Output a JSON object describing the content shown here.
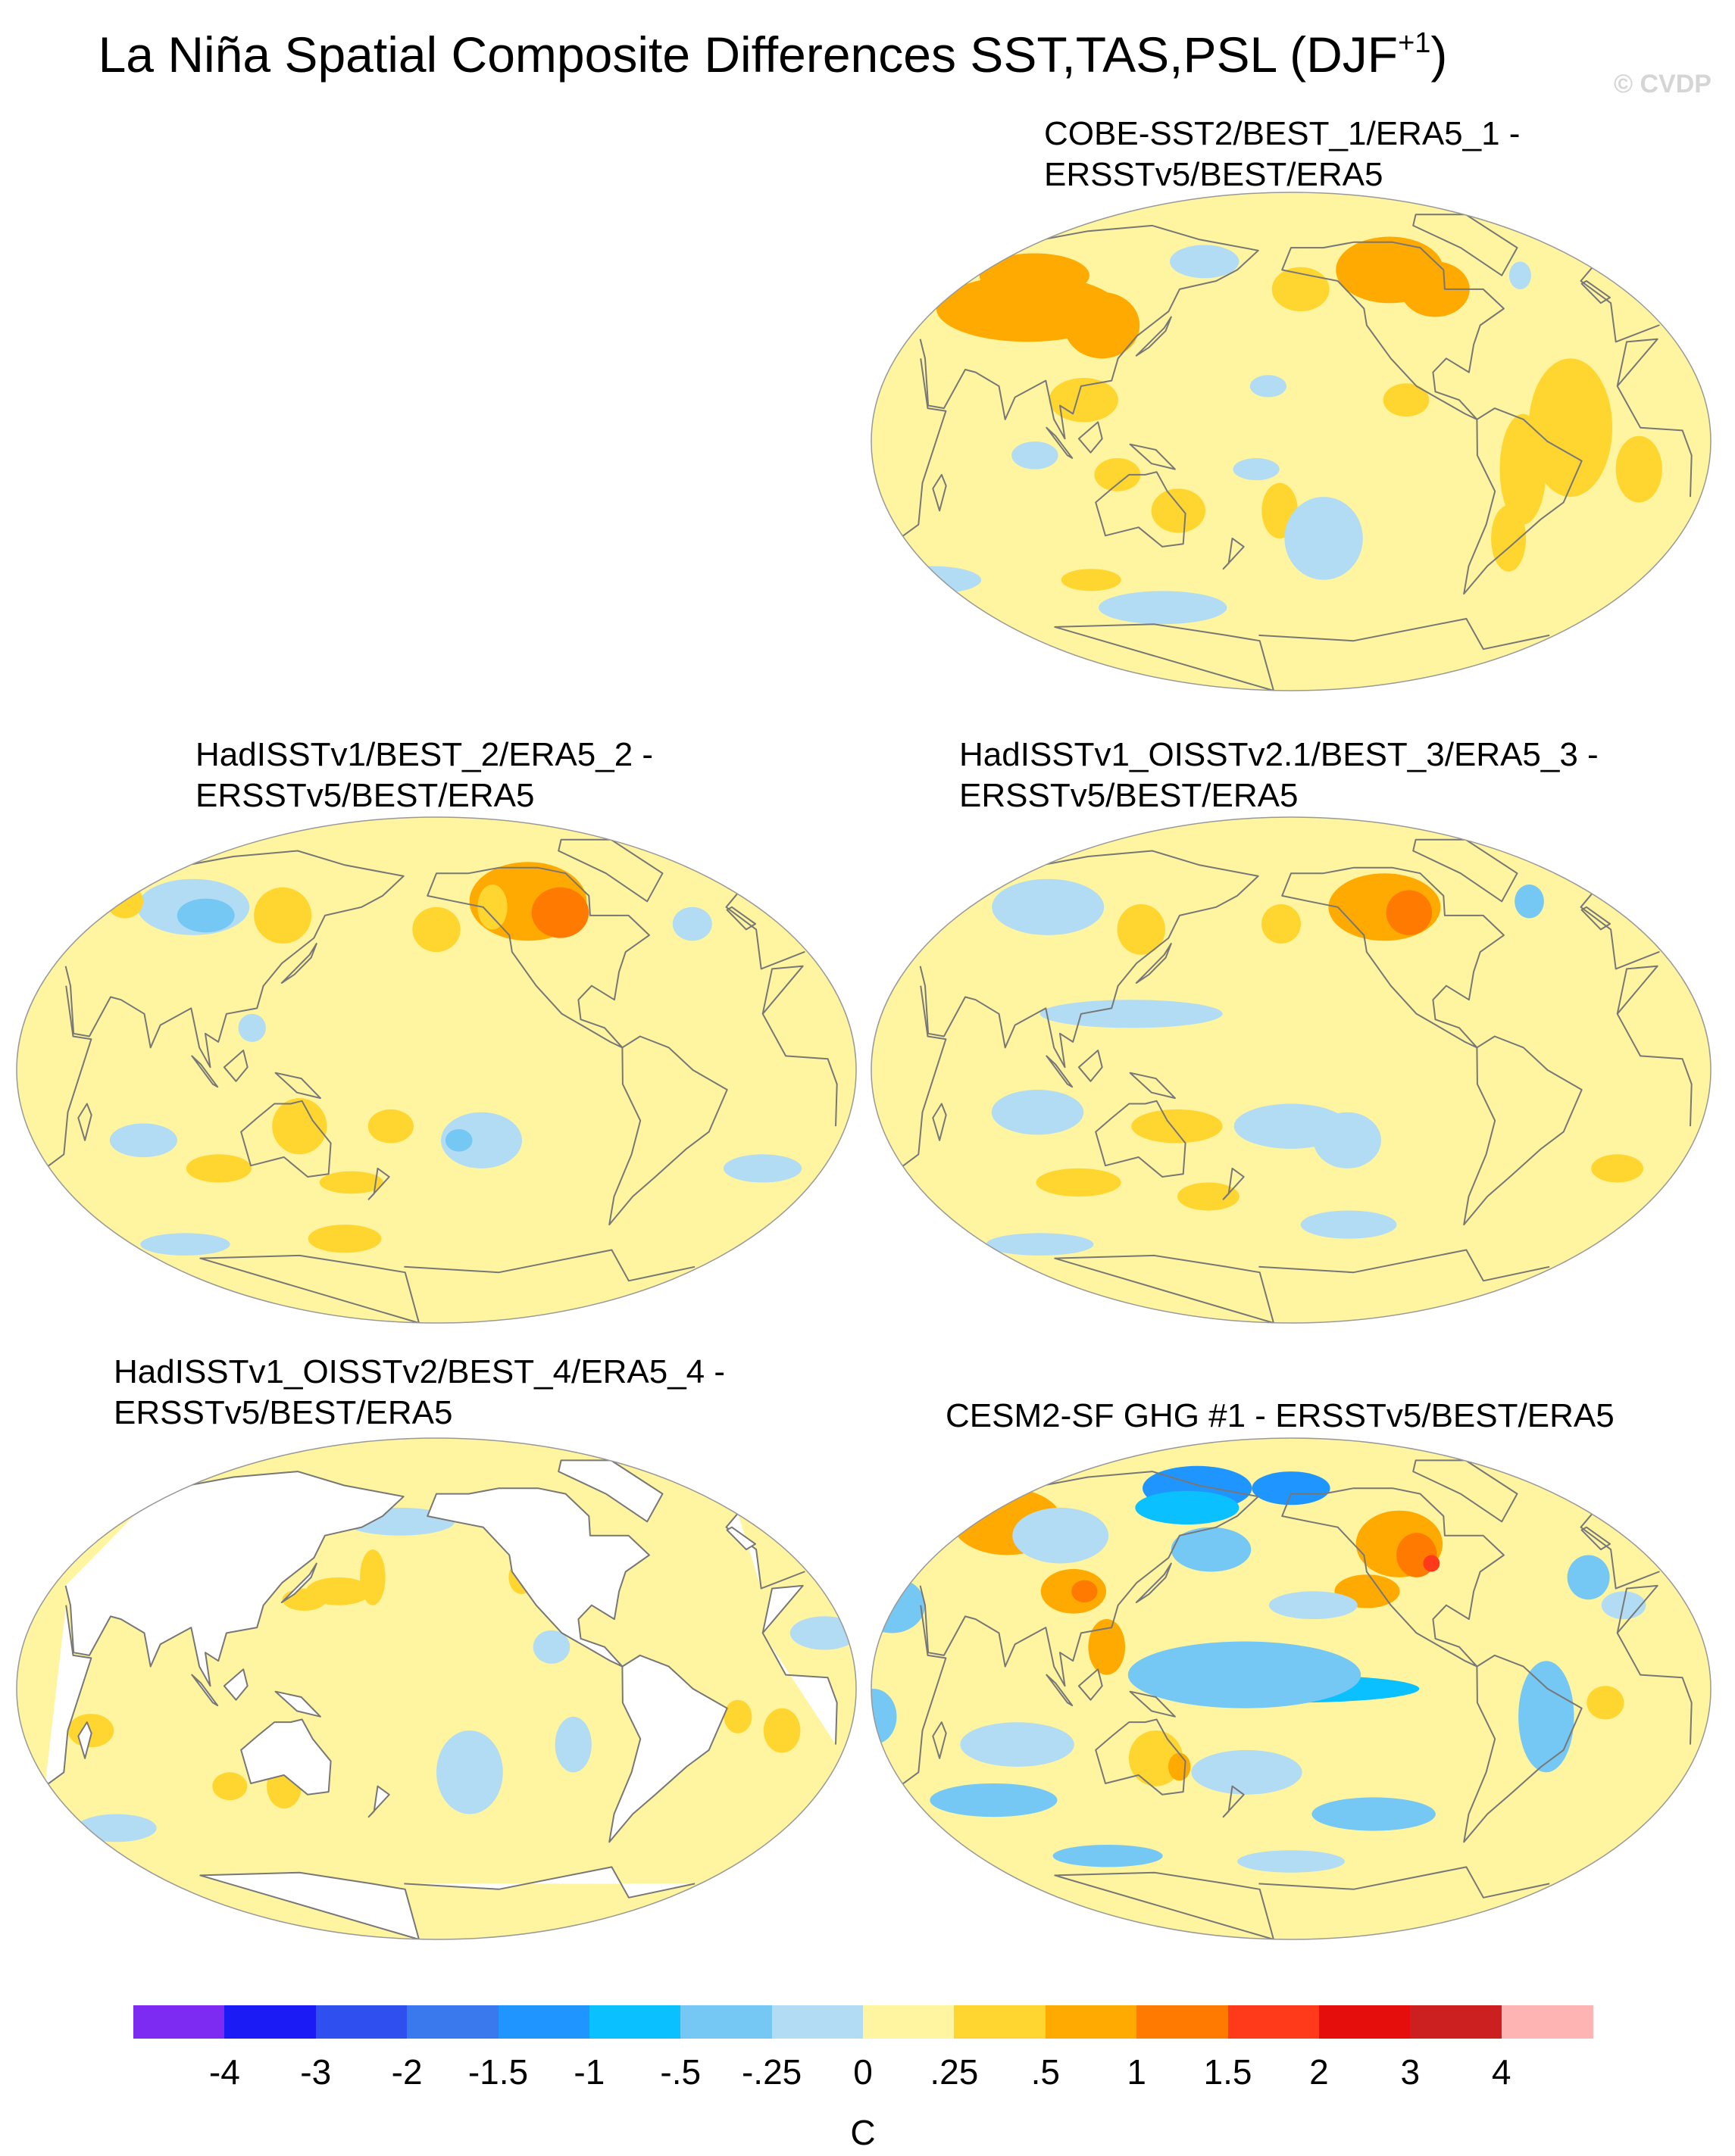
{
  "figure": {
    "title_main": "La Niña Spatial Composite Differences SST,TAS,PSL (DJF",
    "title_sup": "+1",
    "title_close": ")",
    "credit": "© CVDP"
  },
  "colors": {
    "ocean_default": "#fff5a0",
    "land_missing": "#ffffff",
    "coastline": "#777777",
    "map_border": "#999999"
  },
  "chart_data": {
    "type": "heatmap",
    "projection": "Robinson-like global maps, centered on the Pacific",
    "variable": "SST/TAS/PSL composite difference",
    "season": "DJF+1",
    "units": "C",
    "colorbar": {
      "levels": [
        "-4",
        "-3",
        "-2",
        "-1.5",
        "-1",
        "-.5",
        "-.25",
        "0",
        ".25",
        ".5",
        "1",
        "1.5",
        "2",
        "3",
        "4"
      ],
      "colors": [
        "#7d2bf2",
        "#1b1bf5",
        "#2f50ee",
        "#3a78ee",
        "#1f95ff",
        "#0ac0ff",
        "#76c8f4",
        "#b1dcf3",
        "#fff5a0",
        "#ffd530",
        "#ffaa00",
        "#ff7a00",
        "#ff3a1a",
        "#e60d0d",
        "#cc1f1f",
        "#ffb4b4"
      ],
      "unit_label": "C"
    },
    "panels": [
      {
        "id": "p1",
        "title_line1": "COBE-SST2/BEST_1/ERA5_1 -",
        "title_line2": "ERSSTv5/BEST/ERA5",
        "land_missing": false,
        "blobs": [
          {
            "lon": 70,
            "lat": 48,
            "rx": 45,
            "ry": 12,
            "level": 10
          },
          {
            "lon": 60,
            "lat": 60,
            "rx": 30,
            "ry": 8,
            "level": 10
          },
          {
            "lon": 110,
            "lat": 42,
            "rx": 18,
            "ry": 12,
            "level": 10
          },
          {
            "lon": 255,
            "lat": 62,
            "rx": 30,
            "ry": 12,
            "level": 10
          },
          {
            "lon": 275,
            "lat": 55,
            "rx": 18,
            "ry": 10,
            "level": 10
          },
          {
            "lon": 205,
            "lat": 55,
            "rx": 15,
            "ry": 8,
            "level": 9
          },
          {
            "lon": 320,
            "lat": 5,
            "rx": 18,
            "ry": 25,
            "level": 9
          },
          {
            "lon": 300,
            "lat": -10,
            "rx": 10,
            "ry": 20,
            "level": 9
          },
          {
            "lon": 350,
            "lat": -10,
            "rx": 10,
            "ry": 12,
            "level": 9
          },
          {
            "lon": 300,
            "lat": -35,
            "rx": 8,
            "ry": 12,
            "level": 9
          },
          {
            "lon": 110,
            "lat": 15,
            "rx": 15,
            "ry": 8,
            "level": 9
          },
          {
            "lon": 125,
            "lat": -12,
            "rx": 10,
            "ry": 6,
            "level": 9
          },
          {
            "lon": 150,
            "lat": -25,
            "rx": 12,
            "ry": 8,
            "level": 9
          },
          {
            "lon": 195,
            "lat": -25,
            "rx": 8,
            "ry": 10,
            "level": 9
          },
          {
            "lon": 250,
            "lat": 15,
            "rx": 10,
            "ry": 6,
            "level": 9
          },
          {
            "lon": 100,
            "lat": -50,
            "rx": 15,
            "ry": 4,
            "level": 9
          },
          {
            "lon": 150,
            "lat": 65,
            "rx": 20,
            "ry": 6,
            "level": 7
          },
          {
            "lon": 325,
            "lat": 60,
            "rx": 6,
            "ry": 5,
            "level": 7
          },
          {
            "lon": 215,
            "lat": -35,
            "rx": 18,
            "ry": 15,
            "level": 7
          },
          {
            "lon": 185,
            "lat": -10,
            "rx": 10,
            "ry": 4,
            "level": 7
          },
          {
            "lon": 90,
            "lat": -5,
            "rx": 10,
            "ry": 5,
            "level": 7
          },
          {
            "lon": 130,
            "lat": -60,
            "rx": 35,
            "ry": 6,
            "level": 7
          },
          {
            "lon": 20,
            "lat": -50,
            "rx": 25,
            "ry": 5,
            "level": 7
          },
          {
            "lon": 190,
            "lat": 20,
            "rx": 8,
            "ry": 4,
            "level": 7
          }
        ]
      },
      {
        "id": "p2",
        "title_line1": "HadISSTv1/BEST_2/ERA5_2 -",
        "title_line2": "ERSSTv5/BEST/ERA5",
        "land_missing": false,
        "blobs": [
          {
            "lon": 70,
            "lat": 58,
            "rx": 30,
            "ry": 10,
            "level": 7
          },
          {
            "lon": 80,
            "lat": 55,
            "rx": 15,
            "ry": 6,
            "level": 6
          },
          {
            "lon": 120,
            "lat": 55,
            "rx": 15,
            "ry": 10,
            "level": 9
          },
          {
            "lon": 250,
            "lat": 60,
            "rx": 32,
            "ry": 14,
            "level": 10
          },
          {
            "lon": 265,
            "lat": 56,
            "rx": 15,
            "ry": 9,
            "level": 11
          },
          {
            "lon": 200,
            "lat": 50,
            "rx": 12,
            "ry": 8,
            "level": 9
          },
          {
            "lon": 230,
            "lat": 58,
            "rx": 8,
            "ry": 8,
            "level": 9
          },
          {
            "lon": 30,
            "lat": 60,
            "rx": 10,
            "ry": 6,
            "level": 9
          },
          {
            "lon": 330,
            "lat": 52,
            "rx": 10,
            "ry": 6,
            "level": 7
          },
          {
            "lon": 140,
            "lat": -20,
            "rx": 12,
            "ry": 10,
            "level": 9
          },
          {
            "lon": 180,
            "lat": -20,
            "rx": 10,
            "ry": 6,
            "level": 9
          },
          {
            "lon": 100,
            "lat": -35,
            "rx": 15,
            "ry": 5,
            "level": 9
          },
          {
            "lon": 160,
            "lat": -40,
            "rx": 15,
            "ry": 4,
            "level": 9
          },
          {
            "lon": 220,
            "lat": -25,
            "rx": 18,
            "ry": 10,
            "level": 7
          },
          {
            "lon": 210,
            "lat": -25,
            "rx": 6,
            "ry": 4,
            "level": 6
          },
          {
            "lon": 350,
            "lat": -35,
            "rx": 18,
            "ry": 5,
            "level": 7
          },
          {
            "lon": 70,
            "lat": -25,
            "rx": 15,
            "ry": 6,
            "level": 7
          },
          {
            "lon": 120,
            "lat": 15,
            "rx": 6,
            "ry": 5,
            "level": 7
          },
          {
            "lon": 150,
            "lat": -60,
            "rx": 20,
            "ry": 5,
            "level": 9
          },
          {
            "lon": 60,
            "lat": -62,
            "rx": 25,
            "ry": 4,
            "level": 7
          }
        ]
      },
      {
        "id": "p3",
        "title_line1": "HadISSTv1_OISSTv2.1/BEST_3/ERA5_3 -",
        "title_line2": "ERSSTv5/BEST/ERA5",
        "land_missing": false,
        "blobs": [
          {
            "lon": 70,
            "lat": 58,
            "rx": 30,
            "ry": 10,
            "level": 7
          },
          {
            "lon": 250,
            "lat": 58,
            "rx": 30,
            "ry": 12,
            "level": 10
          },
          {
            "lon": 262,
            "lat": 56,
            "rx": 12,
            "ry": 8,
            "level": 11
          },
          {
            "lon": 125,
            "lat": 50,
            "rx": 12,
            "ry": 9,
            "level": 9
          },
          {
            "lon": 195,
            "lat": 52,
            "rx": 10,
            "ry": 7,
            "level": 9
          },
          {
            "lon": 330,
            "lat": 60,
            "rx": 8,
            "ry": 6,
            "level": 6
          },
          {
            "lon": 130,
            "lat": 20,
            "rx": 40,
            "ry": 5,
            "level": 7
          },
          {
            "lon": 90,
            "lat": -15,
            "rx": 20,
            "ry": 8,
            "level": 7
          },
          {
            "lon": 150,
            "lat": -20,
            "rx": 20,
            "ry": 6,
            "level": 9
          },
          {
            "lon": 200,
            "lat": -20,
            "rx": 25,
            "ry": 8,
            "level": 7
          },
          {
            "lon": 225,
            "lat": -25,
            "rx": 15,
            "ry": 10,
            "level": 7
          },
          {
            "lon": 350,
            "lat": -35,
            "rx": 12,
            "ry": 5,
            "level": 9
          },
          {
            "lon": 100,
            "lat": -40,
            "rx": 20,
            "ry": 5,
            "level": 9
          },
          {
            "lon": 160,
            "lat": -45,
            "rx": 15,
            "ry": 5,
            "level": 9
          },
          {
            "lon": 230,
            "lat": -55,
            "rx": 25,
            "ry": 5,
            "level": 7
          },
          {
            "lon": 60,
            "lat": -62,
            "rx": 30,
            "ry": 4,
            "level": 7
          }
        ]
      },
      {
        "id": "p4",
        "title_line1": "HadISSTv1_OISSTv2/BEST_4/ERA5_4 -",
        "title_line2": "ERSSTv5/BEST/ERA5",
        "land_missing": true,
        "blobs": [
          {
            "lon": 170,
            "lat": 40,
            "rx": 6,
            "ry": 10,
            "level": 9
          },
          {
            "lon": 155,
            "lat": 35,
            "rx": 15,
            "ry": 5,
            "level": 9
          },
          {
            "lon": 140,
            "lat": 32,
            "rx": 10,
            "ry": 4,
            "level": 9
          },
          {
            "lon": 240,
            "lat": 40,
            "rx": 6,
            "ry": 6,
            "level": 9
          },
          {
            "lon": 190,
            "lat": 60,
            "rx": 8,
            "ry": 4,
            "level": 9
          },
          {
            "lon": 350,
            "lat": -15,
            "rx": 8,
            "ry": 8,
            "level": 9
          },
          {
            "lon": 330,
            "lat": -10,
            "rx": 6,
            "ry": 6,
            "level": 9
          },
          {
            "lon": 130,
            "lat": -35,
            "rx": 8,
            "ry": 8,
            "level": 9
          },
          {
            "lon": 105,
            "lat": -35,
            "rx": 8,
            "ry": 5,
            "level": 9
          },
          {
            "lon": 180,
            "lat": 60,
            "rx": 30,
            "ry": 5,
            "level": 7
          },
          {
            "lon": 215,
            "lat": -30,
            "rx": 15,
            "ry": 15,
            "level": 7
          },
          {
            "lon": 260,
            "lat": -20,
            "rx": 8,
            "ry": 10,
            "level": 7
          },
          {
            "lon": 40,
            "lat": -50,
            "rx": 20,
            "ry": 5,
            "level": 7
          },
          {
            "lon": 10,
            "lat": 20,
            "rx": 15,
            "ry": 6,
            "level": 7
          },
          {
            "lon": 50,
            "lat": -15,
            "rx": 10,
            "ry": 6,
            "level": 9
          },
          {
            "lon": 250,
            "lat": 15,
            "rx": 8,
            "ry": 6,
            "level": 7
          }
        ]
      },
      {
        "id": "p5",
        "title_line1": "CESM2-SF GHG #1 - ERSSTv5/BEST/ERA5",
        "title_line2": "",
        "land_missing": false,
        "blobs": [
          {
            "lon": 45,
            "lat": 60,
            "rx": 30,
            "ry": 12,
            "level": 10
          },
          {
            "lon": 80,
            "lat": 55,
            "rx": 25,
            "ry": 10,
            "level": 7
          },
          {
            "lon": 100,
            "lat": 35,
            "rx": 15,
            "ry": 8,
            "level": 10
          },
          {
            "lon": 105,
            "lat": 35,
            "rx": 6,
            "ry": 4,
            "level": 11
          },
          {
            "lon": 120,
            "lat": 15,
            "rx": 8,
            "ry": 10,
            "level": 10
          },
          {
            "lon": 20,
            "lat": 30,
            "rx": 15,
            "ry": 10,
            "level": 6
          },
          {
            "lon": 140,
            "lat": 72,
            "rx": 35,
            "ry": 8,
            "level": 4
          },
          {
            "lon": 140,
            "lat": 65,
            "rx": 30,
            "ry": 6,
            "level": 5
          },
          {
            "lon": 200,
            "lat": 72,
            "rx": 25,
            "ry": 6,
            "level": 4
          },
          {
            "lon": 160,
            "lat": 50,
            "rx": 20,
            "ry": 8,
            "level": 6
          },
          {
            "lon": 255,
            "lat": 52,
            "rx": 22,
            "ry": 12,
            "level": 10
          },
          {
            "lon": 262,
            "lat": 48,
            "rx": 10,
            "ry": 8,
            "level": 11
          },
          {
            "lon": 268,
            "lat": 45,
            "rx": 4,
            "ry": 3,
            "level": 12
          },
          {
            "lon": 235,
            "lat": 35,
            "rx": 15,
            "ry": 6,
            "level": 10
          },
          {
            "lon": 210,
            "lat": 30,
            "rx": 20,
            "ry": 5,
            "level": 7
          },
          {
            "lon": 200,
            "lat": 0,
            "rx": 55,
            "ry": 5,
            "level": 5
          },
          {
            "lon": 180,
            "lat": 5,
            "rx": 50,
            "ry": 12,
            "level": 6
          },
          {
            "lon": 310,
            "lat": -10,
            "rx": 12,
            "ry": 20,
            "level": 6
          },
          {
            "lon": 335,
            "lat": -5,
            "rx": 8,
            "ry": 6,
            "level": 9
          },
          {
            "lon": 140,
            "lat": -25,
            "rx": 12,
            "ry": 10,
            "level": 9
          },
          {
            "lon": 150,
            "lat": -28,
            "rx": 5,
            "ry": 5,
            "level": 10
          },
          {
            "lon": 80,
            "lat": -20,
            "rx": 25,
            "ry": 8,
            "level": 7
          },
          {
            "lon": 60,
            "lat": -40,
            "rx": 30,
            "ry": 6,
            "level": 6
          },
          {
            "lon": 180,
            "lat": -30,
            "rx": 25,
            "ry": 8,
            "level": 7
          },
          {
            "lon": 240,
            "lat": -45,
            "rx": 30,
            "ry": 6,
            "level": 6
          },
          {
            "lon": 20,
            "lat": -10,
            "rx": 10,
            "ry": 10,
            "level": 6
          },
          {
            "lon": 100,
            "lat": -60,
            "rx": 30,
            "ry": 4,
            "level": 6
          },
          {
            "lon": 200,
            "lat": -62,
            "rx": 30,
            "ry": 4,
            "level": 7
          },
          {
            "lon": 340,
            "lat": 40,
            "rx": 10,
            "ry": 8,
            "level": 6
          },
          {
            "lon": 350,
            "lat": 30,
            "rx": 10,
            "ry": 5,
            "level": 7
          }
        ]
      }
    ]
  }
}
